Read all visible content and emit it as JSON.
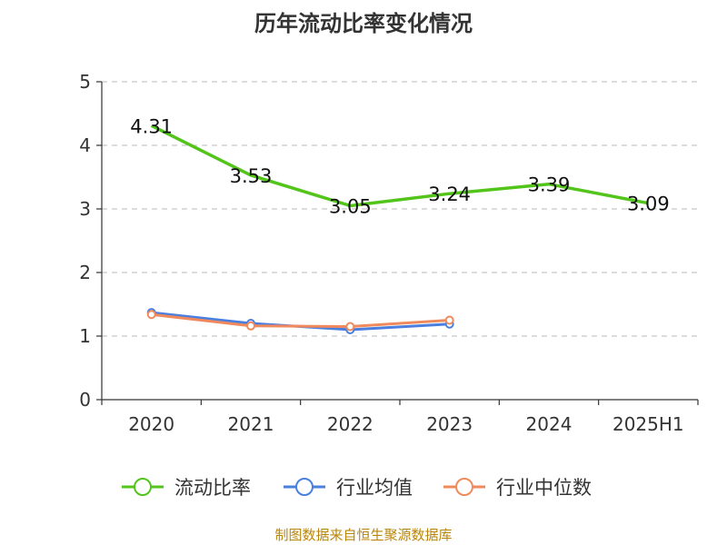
{
  "chart_data": {
    "type": "line",
    "title": "历年流动比率变化情况",
    "categories": [
      "2020",
      "2021",
      "2022",
      "2023",
      "2024",
      "2025H1"
    ],
    "ylim": [
      0,
      5
    ],
    "yticks": [
      "0",
      "1",
      "2",
      "3",
      "4",
      "5"
    ],
    "grid": true,
    "legend_position": "bottom",
    "series": [
      {
        "name": "流动比率",
        "color": "#52c41a",
        "values": [
          4.31,
          3.53,
          3.05,
          3.24,
          3.39,
          3.09
        ],
        "labels": [
          "4.31",
          "3.53",
          "3.05",
          "3.24",
          "3.39",
          "3.09"
        ]
      },
      {
        "name": "行业均值",
        "color": "#4a7fe0",
        "values": [
          1.37,
          1.2,
          1.1,
          1.19,
          null,
          null
        ]
      },
      {
        "name": "行业中位数",
        "color": "#f08a5d",
        "values": [
          1.34,
          1.16,
          1.15,
          1.25,
          null,
          null
        ]
      }
    ]
  },
  "source": "制图数据来自恒生聚源数据库"
}
